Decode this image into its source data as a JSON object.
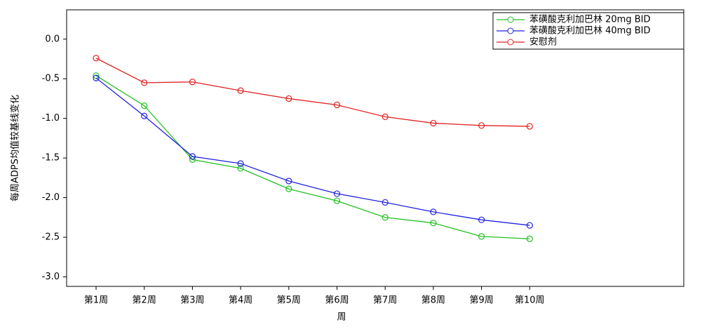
{
  "chart_data": {
    "type": "line",
    "x_label": "周",
    "y_label": "每周ADPS均值较基线变化",
    "categories": [
      "第1周",
      "第2周",
      "第3周",
      "第4周",
      "第5周",
      "第6周",
      "第7周",
      "第8周",
      "第9周",
      "第10周"
    ],
    "series": [
      {
        "name": "苯磺酸克利加巴林 20mg BID",
        "color": "#22c022",
        "values": [
          -0.46,
          -0.84,
          -1.52,
          -1.63,
          -1.89,
          -2.04,
          -2.25,
          -2.32,
          -2.49,
          -2.52
        ]
      },
      {
        "name": "苯磺酸克利加巴林 40mg BID",
        "color": "#2222dd",
        "values": [
          -0.49,
          -0.97,
          -1.48,
          -1.57,
          -1.79,
          -1.95,
          -2.06,
          -2.18,
          -2.28,
          -2.35
        ]
      },
      {
        "name": "安慰剂",
        "color": "#e02222",
        "values": [
          -0.24,
          -0.55,
          -0.54,
          -0.65,
          -0.75,
          -0.83,
          -0.98,
          -1.06,
          -1.09,
          -1.1
        ]
      }
    ],
    "ylim": [
      -3.12,
      0.37
    ],
    "yticks": [
      {
        "value": 0,
        "label": "0.0"
      },
      {
        "value": -0.5,
        "label": "-0.5"
      },
      {
        "value": -1,
        "label": "-1.0"
      },
      {
        "value": -1.5,
        "label": "-1.5"
      },
      {
        "value": -2,
        "label": "-2.0"
      },
      {
        "value": -2.5,
        "label": "-2.5"
      },
      {
        "value": -3,
        "label": "-3.0"
      }
    ],
    "legend": "upper right"
  }
}
